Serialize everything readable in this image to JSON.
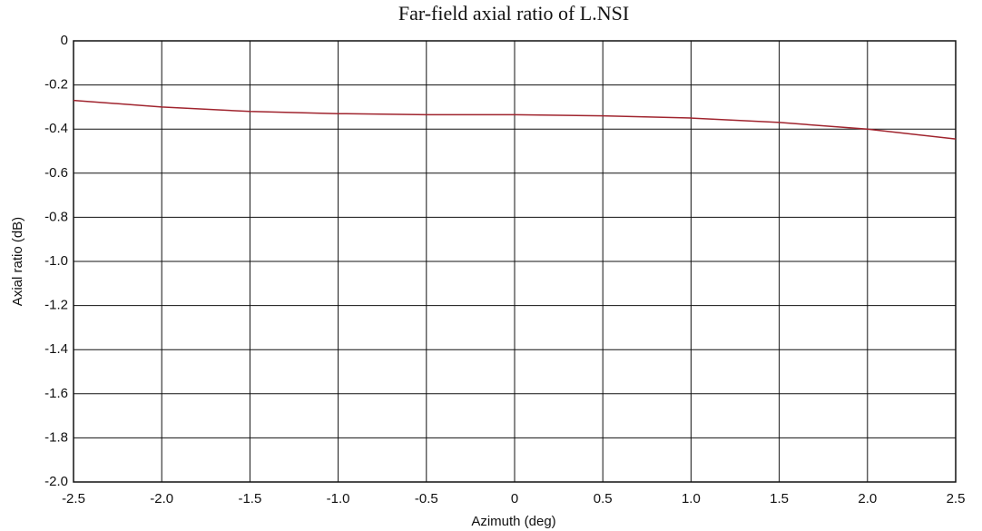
{
  "chart_data": {
    "type": "line",
    "title": "Far-field axial ratio of L.NSI",
    "x_label": "Azimuth (deg)",
    "y_label": "Axial ratio (dB)",
    "x": [
      -2.5,
      -2.0,
      -1.5,
      -1.0,
      -0.5,
      0,
      0.5,
      1.0,
      1.5,
      2.0,
      2.5
    ],
    "series": [
      {
        "name": "Axial ratio",
        "color": "#a0242e",
        "values": [
          -0.27,
          -0.3,
          -0.32,
          -0.33,
          -0.335,
          -0.335,
          -0.34,
          -0.35,
          -0.37,
          -0.4,
          -0.445
        ]
      }
    ],
    "xlim": [
      -2.5,
      2.5
    ],
    "xticks": [
      -2.5,
      {
        "value": -2,
        "label": "-2.0"
      },
      -1.5,
      {
        "value": -1,
        "label": "-1.0"
      },
      -0.5,
      0,
      0.5,
      {
        "value": 1,
        "label": "1.0"
      },
      1.5,
      {
        "value": 2,
        "label": "2.0"
      },
      2.5
    ],
    "ylim": [
      -2,
      0
    ],
    "yticks": [
      0,
      -0.2,
      -0.4,
      -0.6,
      -0.8,
      {
        "value": -1,
        "label": "-1.0"
      },
      -1.2,
      -1.4,
      -1.6,
      -1.8,
      {
        "value": -2,
        "label": "-2.0"
      }
    ],
    "grid": true
  }
}
